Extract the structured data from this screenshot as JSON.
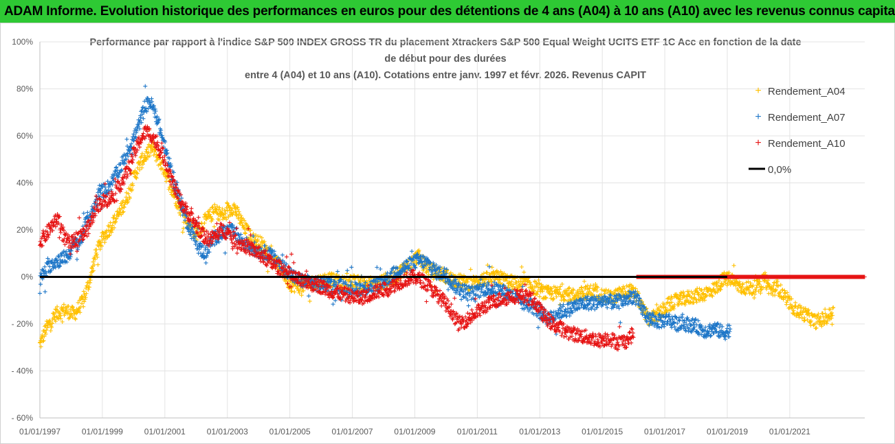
{
  "header": {
    "title": "ADAM Informe. Evolution historique des performances en euros pour des détentions de 4 ans (A04) à 10 ans (A10) avec les revenus connus capitalisés"
  },
  "chart_data": {
    "type": "scatter",
    "title_lines": [
      "Performance par rapport à l'indice S&P 500 INDEX GROSS TR  du placement Xtrackers S&P 500 Equal Weight UCITS ETF 1C Acc en fonction de la date",
      "de début pour des durées",
      "entre 4 (A04) et 10 ans (A10). Cotations entre janv. 1997 et févr. 2026. Revenus CAPIT"
    ],
    "xlabel": "",
    "ylabel": "",
    "xlim": [
      1997.0,
      2023.4
    ],
    "ylim": [
      -60,
      100
    ],
    "x_tick_labels": [
      "01/01/1997",
      "01/01/1999",
      "01/01/2001",
      "01/01/2003",
      "01/01/2005",
      "01/01/2007",
      "01/01/2009",
      "01/01/2011",
      "01/01/2013",
      "01/01/2015",
      "01/01/2017",
      "01/01/2019",
      "01/01/2021"
    ],
    "x_tick_values": [
      1997,
      1999,
      2001,
      2003,
      2005,
      2007,
      2009,
      2011,
      2013,
      2015,
      2017,
      2019,
      2021
    ],
    "y_tick_labels": [
      "100%",
      "80%",
      "60%",
      "40%",
      "20%",
      "0%",
      "- 20%",
      "- 40%",
      "- 60%"
    ],
    "y_tick_values": [
      100,
      80,
      60,
      40,
      20,
      0,
      -20,
      -40,
      -60
    ],
    "legend_position": "right",
    "marker": "+",
    "series": [
      {
        "name": "Rendement_A04",
        "color": "#ffc000",
        "anchors": [
          [
            1997.0,
            -29
          ],
          [
            1997.2,
            -22
          ],
          [
            1997.5,
            -16
          ],
          [
            1997.8,
            -14
          ],
          [
            1998.1,
            -16
          ],
          [
            1998.4,
            -10
          ],
          [
            1998.6,
            -1
          ],
          [
            1998.8,
            10
          ],
          [
            1999.0,
            16
          ],
          [
            1999.2,
            20
          ],
          [
            1999.5,
            26
          ],
          [
            1999.8,
            34
          ],
          [
            2000.0,
            42
          ],
          [
            2000.2,
            48
          ],
          [
            2000.4,
            52
          ],
          [
            2000.6,
            55
          ],
          [
            2000.8,
            50
          ],
          [
            2001.0,
            45
          ],
          [
            2001.2,
            38
          ],
          [
            2001.4,
            32
          ],
          [
            2001.6,
            26
          ],
          [
            2001.8,
            22
          ],
          [
            2002.0,
            18
          ],
          [
            2002.3,
            24
          ],
          [
            2002.6,
            28
          ],
          [
            2002.9,
            26
          ],
          [
            2003.2,
            30
          ],
          [
            2003.5,
            22
          ],
          [
            2003.8,
            16
          ],
          [
            2004.1,
            14
          ],
          [
            2004.4,
            9
          ],
          [
            2004.7,
            4
          ],
          [
            2005.0,
            -3
          ],
          [
            2005.3,
            -4
          ],
          [
            2005.6,
            -3
          ],
          [
            2005.9,
            -2
          ],
          [
            2006.2,
            -1
          ],
          [
            2006.5,
            -2
          ],
          [
            2006.8,
            -3
          ],
          [
            2007.1,
            -2
          ],
          [
            2007.4,
            -3
          ],
          [
            2007.7,
            -3
          ],
          [
            2008.0,
            -2
          ],
          [
            2008.3,
            -1
          ],
          [
            2008.6,
            3
          ],
          [
            2008.9,
            6
          ],
          [
            2009.1,
            9
          ],
          [
            2009.3,
            5
          ],
          [
            2009.6,
            2
          ],
          [
            2009.9,
            1
          ],
          [
            2010.2,
            -1
          ],
          [
            2010.5,
            -2
          ],
          [
            2010.8,
            -3
          ],
          [
            2011.1,
            -1
          ],
          [
            2011.4,
            -1
          ],
          [
            2011.7,
            0
          ],
          [
            2012.0,
            -2
          ],
          [
            2012.3,
            -3
          ],
          [
            2012.6,
            -3
          ],
          [
            2012.9,
            -5
          ],
          [
            2013.2,
            -7
          ],
          [
            2013.5,
            -7
          ],
          [
            2013.8,
            -7
          ],
          [
            2014.1,
            -8
          ],
          [
            2014.4,
            -7
          ],
          [
            2014.7,
            -6
          ],
          [
            2015.0,
            -8
          ],
          [
            2015.3,
            -9
          ],
          [
            2015.6,
            -7
          ],
          [
            2015.9,
            -6
          ],
          [
            2016.1,
            -8
          ],
          [
            2016.3,
            -14
          ],
          [
            2016.5,
            -18
          ],
          [
            2016.8,
            -16
          ],
          [
            2017.1,
            -12
          ],
          [
            2017.4,
            -10
          ],
          [
            2017.7,
            -9
          ],
          [
            2018.0,
            -8
          ],
          [
            2018.3,
            -7
          ],
          [
            2018.6,
            -5
          ],
          [
            2018.9,
            -1
          ],
          [
            2019.1,
            -1
          ],
          [
            2019.4,
            -4
          ],
          [
            2019.7,
            -5
          ],
          [
            2020.0,
            -4
          ],
          [
            2020.2,
            -1
          ],
          [
            2020.4,
            -6
          ],
          [
            2020.6,
            -4
          ],
          [
            2020.9,
            -10
          ],
          [
            2021.2,
            -14
          ],
          [
            2021.5,
            -16
          ],
          [
            2021.8,
            -19
          ],
          [
            2022.1,
            -18
          ],
          [
            2022.4,
            -15
          ]
        ]
      },
      {
        "name": "Rendement_A07",
        "color": "#1f77c8",
        "anchors": [
          [
            1997.0,
            -1
          ],
          [
            1997.2,
            3
          ],
          [
            1997.4,
            6
          ],
          [
            1997.6,
            7
          ],
          [
            1997.9,
            9
          ],
          [
            1998.1,
            14
          ],
          [
            1998.3,
            15
          ],
          [
            1998.5,
            24
          ],
          [
            1998.7,
            28
          ],
          [
            1998.9,
            36
          ],
          [
            1999.1,
            37
          ],
          [
            1999.3,
            40
          ],
          [
            1999.5,
            45
          ],
          [
            1999.7,
            50
          ],
          [
            1999.9,
            56
          ],
          [
            2000.1,
            62
          ],
          [
            2000.3,
            70
          ],
          [
            2000.5,
            75
          ],
          [
            2000.7,
            70
          ],
          [
            2000.9,
            60
          ],
          [
            2001.1,
            50
          ],
          [
            2001.3,
            40
          ],
          [
            2001.5,
            32
          ],
          [
            2001.7,
            24
          ],
          [
            2001.9,
            18
          ],
          [
            2002.1,
            12
          ],
          [
            2002.3,
            10
          ],
          [
            2002.5,
            15
          ],
          [
            2002.7,
            18
          ],
          [
            2002.9,
            19
          ],
          [
            2003.1,
            20
          ],
          [
            2003.4,
            16
          ],
          [
            2003.7,
            13
          ],
          [
            2004.0,
            11
          ],
          [
            2004.3,
            10
          ],
          [
            2004.6,
            7
          ],
          [
            2004.9,
            3
          ],
          [
            2005.2,
            -1
          ],
          [
            2005.5,
            -2
          ],
          [
            2005.8,
            -3
          ],
          [
            2006.1,
            -3
          ],
          [
            2006.4,
            -4
          ],
          [
            2006.7,
            -4
          ],
          [
            2007.0,
            -5
          ],
          [
            2007.3,
            -5
          ],
          [
            2007.6,
            -4
          ],
          [
            2007.9,
            -3
          ],
          [
            2008.2,
            0
          ],
          [
            2008.5,
            3
          ],
          [
            2008.8,
            5
          ],
          [
            2009.1,
            7
          ],
          [
            2009.4,
            6
          ],
          [
            2009.7,
            2
          ],
          [
            2010.0,
            1
          ],
          [
            2010.3,
            -4
          ],
          [
            2010.6,
            -6
          ],
          [
            2010.9,
            -7
          ],
          [
            2011.2,
            -5
          ],
          [
            2011.5,
            -5
          ],
          [
            2011.8,
            -6
          ],
          [
            2012.1,
            -8
          ],
          [
            2012.4,
            -11
          ],
          [
            2012.7,
            -12
          ],
          [
            2013.0,
            -15
          ],
          [
            2013.3,
            -18
          ],
          [
            2013.6,
            -15
          ],
          [
            2013.9,
            -14
          ],
          [
            2014.2,
            -12
          ],
          [
            2014.5,
            -11
          ],
          [
            2014.8,
            -11
          ],
          [
            2015.1,
            -10
          ],
          [
            2015.4,
            -11
          ],
          [
            2015.7,
            -10
          ],
          [
            2016.0,
            -8
          ],
          [
            2016.2,
            -12
          ],
          [
            2016.5,
            -18
          ],
          [
            2016.8,
            -19
          ],
          [
            2017.1,
            -18
          ],
          [
            2017.4,
            -20
          ],
          [
            2017.7,
            -20
          ],
          [
            2018.0,
            -21
          ],
          [
            2018.3,
            -23
          ],
          [
            2018.6,
            -22
          ],
          [
            2018.9,
            -24
          ],
          [
            2019.1,
            -22
          ]
        ]
      },
      {
        "name": "Rendement_A10",
        "color": "#e61414",
        "anchors": [
          [
            1997.0,
            15
          ],
          [
            1997.2,
            18
          ],
          [
            1997.4,
            22
          ],
          [
            1997.6,
            25
          ],
          [
            1997.8,
            16
          ],
          [
            1998.0,
            14
          ],
          [
            1998.2,
            17
          ],
          [
            1998.4,
            18
          ],
          [
            1998.6,
            22
          ],
          [
            1998.8,
            30
          ],
          [
            1999.0,
            32
          ],
          [
            1999.2,
            33
          ],
          [
            1999.4,
            35
          ],
          [
            1999.6,
            40
          ],
          [
            1999.8,
            45
          ],
          [
            2000.0,
            52
          ],
          [
            2000.2,
            58
          ],
          [
            2000.4,
            62
          ],
          [
            2000.6,
            60
          ],
          [
            2000.8,
            55
          ],
          [
            2001.0,
            50
          ],
          [
            2001.2,
            42
          ],
          [
            2001.4,
            35
          ],
          [
            2001.6,
            30
          ],
          [
            2001.8,
            26
          ],
          [
            2002.0,
            22
          ],
          [
            2002.2,
            18
          ],
          [
            2002.4,
            16
          ],
          [
            2002.6,
            17
          ],
          [
            2002.8,
            20
          ],
          [
            2003.0,
            19
          ],
          [
            2003.3,
            15
          ],
          [
            2003.6,
            13
          ],
          [
            2003.9,
            11
          ],
          [
            2004.2,
            8
          ],
          [
            2004.5,
            5
          ],
          [
            2004.8,
            3
          ],
          [
            2005.1,
            0
          ],
          [
            2005.4,
            -2
          ],
          [
            2005.7,
            -3
          ],
          [
            2006.0,
            -4
          ],
          [
            2006.3,
            -6
          ],
          [
            2006.6,
            -7
          ],
          [
            2006.9,
            -8
          ],
          [
            2007.2,
            -9
          ],
          [
            2007.5,
            -8
          ],
          [
            2007.8,
            -6
          ],
          [
            2008.1,
            -5
          ],
          [
            2008.4,
            -3
          ],
          [
            2008.7,
            -1
          ],
          [
            2009.0,
            0
          ],
          [
            2009.3,
            -2
          ],
          [
            2009.6,
            -6
          ],
          [
            2009.9,
            -10
          ],
          [
            2010.2,
            -15
          ],
          [
            2010.4,
            -20
          ],
          [
            2010.7,
            -18
          ],
          [
            2011.0,
            -15
          ],
          [
            2011.3,
            -12
          ],
          [
            2011.6,
            -10
          ],
          [
            2011.9,
            -9
          ],
          [
            2012.2,
            -8
          ],
          [
            2012.5,
            -8
          ],
          [
            2012.8,
            -10
          ],
          [
            2013.1,
            -16
          ],
          [
            2013.4,
            -20
          ],
          [
            2013.7,
            -22
          ],
          [
            2014.0,
            -24
          ],
          [
            2014.3,
            -25
          ],
          [
            2014.6,
            -26
          ],
          [
            2014.9,
            -27
          ],
          [
            2015.2,
            -26
          ],
          [
            2015.5,
            -28
          ],
          [
            2015.8,
            -27
          ],
          [
            2016.0,
            -24
          ]
        ],
        "zero_run": [
          2016.1,
          2023.4
        ]
      }
    ],
    "reference_line": {
      "name": "0,0%",
      "value": 0,
      "x_end": 2019.0,
      "color": "#000000"
    }
  }
}
